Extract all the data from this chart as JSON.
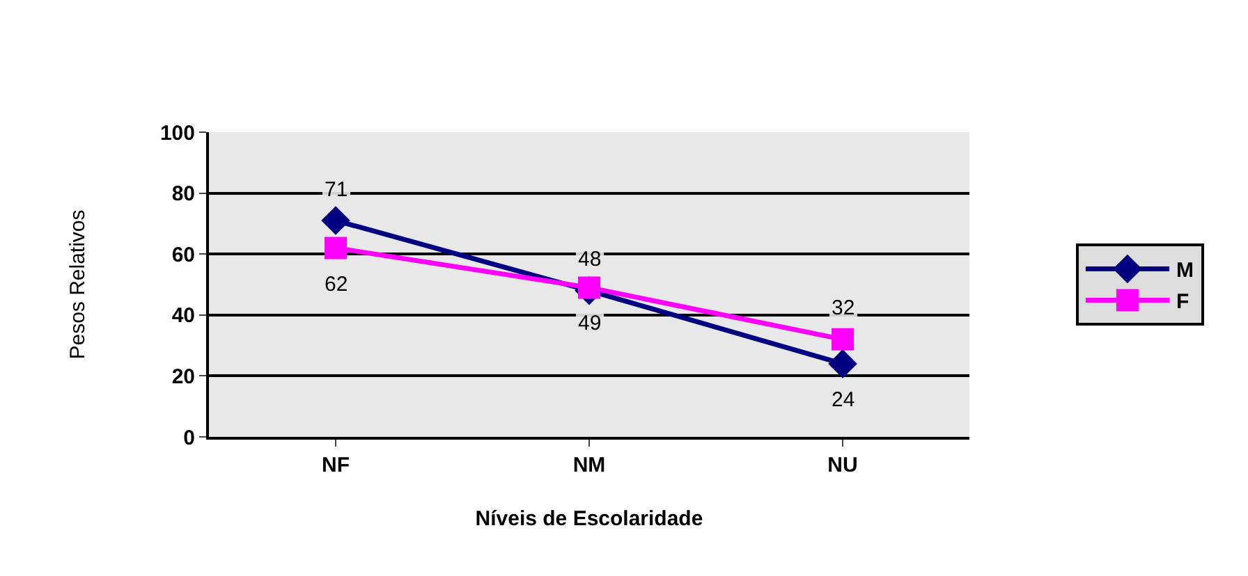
{
  "chart_data": {
    "type": "line",
    "xlabel": "Níveis de Escolaridade",
    "ylabel": "Pesos Relativos",
    "categories": [
      "NF",
      "NM",
      "NU"
    ],
    "series": [
      {
        "name": "M",
        "color": "#000080",
        "values": [
          71,
          48,
          24
        ],
        "marker": "diamond"
      },
      {
        "name": "F",
        "color": "#ff00ff",
        "values": [
          62,
          49,
          32
        ],
        "marker": "square"
      }
    ],
    "ylim": [
      0,
      100
    ],
    "yticks": [
      0,
      20,
      40,
      60,
      80,
      100
    ],
    "grid": "y",
    "legend": "right",
    "data_labels": true
  }
}
